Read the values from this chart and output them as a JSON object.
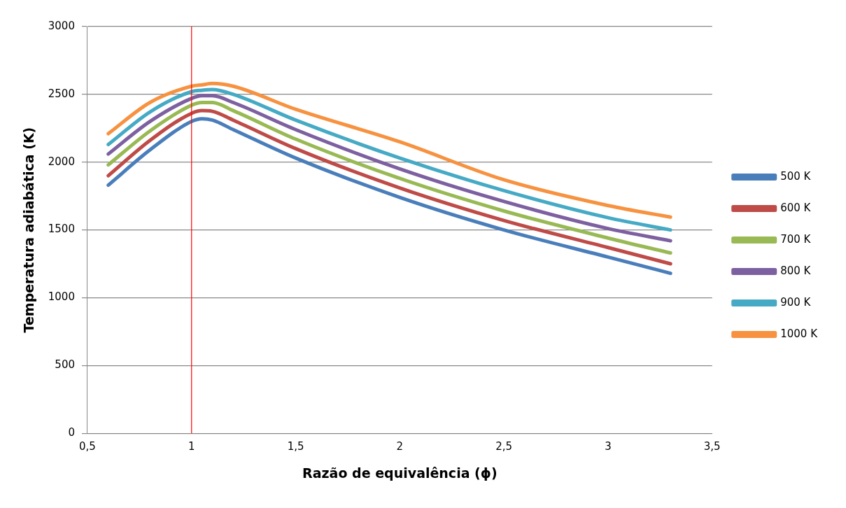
{
  "chart_data": {
    "type": "line",
    "xlabel": "Razão de equivalência (ϕ)",
    "ylabel": "Temperatura adiabática (K)",
    "x": [
      0.6,
      0.8,
      1.0,
      1.05,
      1.1,
      1.2,
      1.5,
      2,
      2.5,
      3,
      3.3
    ],
    "xlim": [
      0.5,
      3.5
    ],
    "xticks": [
      {
        "value": 0.5,
        "label": "0,5"
      },
      1,
      {
        "value": 1.5,
        "label": "1,5"
      },
      2,
      {
        "value": 2.5,
        "label": "2,5"
      },
      3,
      {
        "value": 3.5,
        "label": "3,5"
      }
    ],
    "ylim": [
      0,
      3000
    ],
    "yticks": [
      0,
      500,
      1000,
      1500,
      2000,
      2500,
      3000
    ],
    "grid": "y",
    "legend": "right",
    "marker": "none",
    "line_style": "solid",
    "ref_lines": [
      {
        "axis": "x",
        "value": 1,
        "color": "#ff0000"
      }
    ],
    "series": [
      {
        "name": "500 K",
        "color": "#4a7ebb",
        "values": [
          1830,
          2090,
          2300,
          2320,
          2310,
          2240,
          2030,
          1740,
          1500,
          1300,
          1180
        ]
      },
      {
        "name": "600 K",
        "color": "#be4b48",
        "values": [
          1900,
          2160,
          2360,
          2380,
          2375,
          2310,
          2100,
          1810,
          1570,
          1370,
          1250
        ]
      },
      {
        "name": "700 K",
        "color": "#98b954",
        "values": [
          1980,
          2230,
          2420,
          2440,
          2440,
          2380,
          2170,
          1880,
          1640,
          1440,
          1330
        ]
      },
      {
        "name": "800 K",
        "color": "#7d60a0",
        "values": [
          2060,
          2300,
          2470,
          2490,
          2490,
          2440,
          2240,
          1950,
          1710,
          1510,
          1420
        ]
      },
      {
        "name": "900 K",
        "color": "#46aac5",
        "values": [
          2130,
          2370,
          2520,
          2530,
          2535,
          2500,
          2310,
          2030,
          1790,
          1590,
          1500
        ]
      },
      {
        "name": "1000 K",
        "color": "#f69240",
        "values": [
          2210,
          2440,
          2560,
          2570,
          2580,
          2560,
          2390,
          2150,
          1870,
          1680,
          1595
        ]
      }
    ]
  }
}
